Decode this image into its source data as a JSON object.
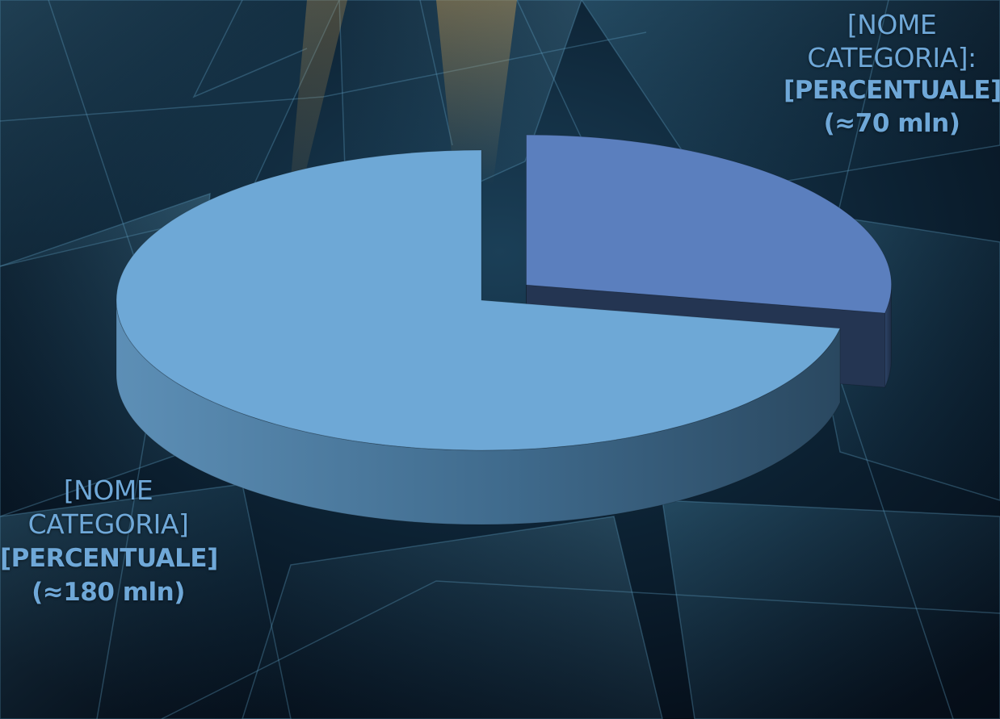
{
  "chart_data": {
    "type": "pie",
    "style": "3d",
    "slices": [
      {
        "category_label": "[NOME CATEGORIA]:",
        "value_label": "[PERCENTUALE] (≈70 mln)",
        "value": 70,
        "color": "#5b7fbe",
        "side_color": "#243552",
        "exploded": true
      },
      {
        "category_label": "[NOME CATEGORIA]",
        "value_label": "[PERCENTUALE] (≈180 mln)",
        "value": 180,
        "color": "#6ea8d6",
        "side_color": "#36566f",
        "exploded": false
      }
    ]
  },
  "colors": {
    "background": "#05101c",
    "label_text": "#6fa8d8"
  }
}
